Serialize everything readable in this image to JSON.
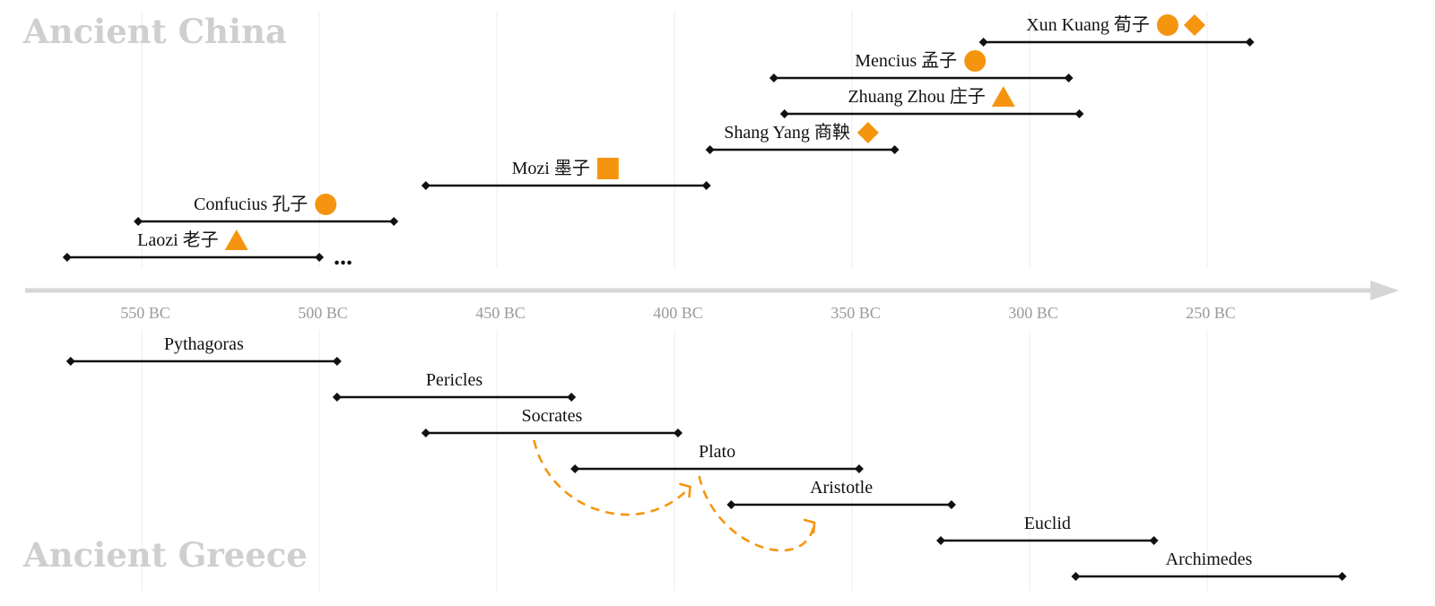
{
  "chart_data": {
    "type": "timeline",
    "x_unit": "year (BC)",
    "xlim": [
      570,
      190
    ],
    "x_ticks": [
      {
        "year": 550,
        "label": "550 BC"
      },
      {
        "year": 500,
        "label": "500 BC"
      },
      {
        "year": 450,
        "label": "450 BC"
      },
      {
        "year": 400,
        "label": "400 BC"
      },
      {
        "year": 350,
        "label": "350 BC"
      },
      {
        "year": 300,
        "label": "300 BC"
      },
      {
        "year": 250,
        "label": "250 BC"
      }
    ],
    "grid": true,
    "groups": [
      {
        "title": "Ancient China",
        "side": "top",
        "people": [
          {
            "name": "Laozi 老子",
            "start": 571,
            "end": 500,
            "markers": [
              "triangle"
            ],
            "continues": true,
            "continues_label": "..."
          },
          {
            "name": "Confucius 孔子",
            "start": 551,
            "end": 479,
            "markers": [
              "circle"
            ]
          },
          {
            "name": "Mozi 墨子",
            "start": 470,
            "end": 391,
            "markers": [
              "square"
            ]
          },
          {
            "name": "Shang Yang 商鞅",
            "start": 390,
            "end": 338,
            "markers": [
              "diamond"
            ]
          },
          {
            "name": "Zhuang Zhou 庄子",
            "start": 369,
            "end": 286,
            "markers": [
              "triangle"
            ]
          },
          {
            "name": "Mencius 孟子",
            "start": 372,
            "end": 289,
            "markers": [
              "circle"
            ]
          },
          {
            "name": "Xun Kuang 荀子",
            "start": 313,
            "end": 238,
            "markers": [
              "circle",
              "diamond"
            ]
          }
        ]
      },
      {
        "title": "Ancient Greece",
        "side": "bottom",
        "people": [
          {
            "name": "Pythagoras",
            "start": 570,
            "end": 495
          },
          {
            "name": "Pericles",
            "start": 495,
            "end": 429
          },
          {
            "name": "Socrates",
            "start": 470,
            "end": 399
          },
          {
            "name": "Plato",
            "start": 428,
            "end": 348
          },
          {
            "name": "Aristotle",
            "start": 384,
            "end": 322
          },
          {
            "name": "Euclid",
            "start": 325,
            "end": 265
          },
          {
            "name": "Archimedes",
            "start": 287,
            "end": 212
          }
        ]
      }
    ],
    "influences": [
      {
        "from": "Socrates",
        "to": "Plato"
      },
      {
        "from": "Plato",
        "to": "Aristotle"
      }
    ],
    "colors": {
      "marker": "#f5950f",
      "line": "#111111",
      "axis": "#d6d6d6",
      "title": "#cfcfcf",
      "tick": "#9a9a9a"
    }
  }
}
